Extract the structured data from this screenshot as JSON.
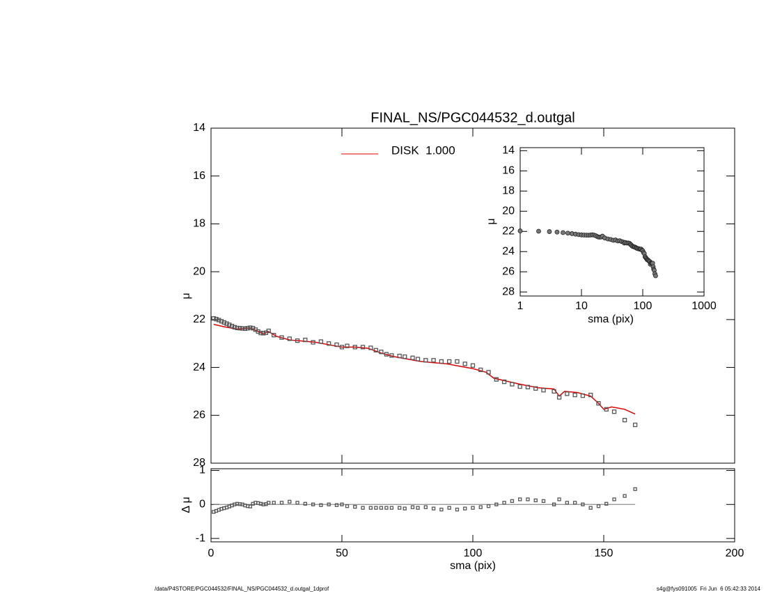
{
  "chart_data": [
    {
      "type": "scatter",
      "title": "FINAL_NS/PGC044532_d.outgal",
      "y_label": "μ",
      "xlim": [
        0,
        200
      ],
      "ylim": [
        14,
        28
      ],
      "y_inverted": true,
      "yticks": [
        14,
        16,
        18,
        20,
        22,
        24,
        26,
        28
      ],
      "observed": {
        "color": "#555555",
        "x": [
          1,
          2,
          3,
          4,
          5,
          6,
          7,
          8,
          9,
          10,
          11,
          12,
          13,
          14,
          15,
          16,
          17,
          18,
          19,
          20,
          21,
          22,
          24,
          27,
          30,
          33,
          36,
          39,
          42,
          45,
          48,
          50,
          52,
          55,
          58,
          61,
          63,
          65,
          67,
          69,
          72,
          74,
          77,
          79,
          82,
          85,
          88,
          91,
          94,
          97,
          100,
          103,
          106,
          109,
          112,
          115,
          118,
          121,
          124,
          127,
          131,
          133,
          136,
          139,
          142,
          145,
          148,
          151,
          154,
          158,
          162
        ],
        "values": [
          21.95,
          21.98,
          22.02,
          22.07,
          22.12,
          22.17,
          22.22,
          22.27,
          22.32,
          22.35,
          22.36,
          22.37,
          22.38,
          22.36,
          22.34,
          22.36,
          22.42,
          22.5,
          22.56,
          22.57,
          22.55,
          22.47,
          22.65,
          22.75,
          22.8,
          22.88,
          22.85,
          22.95,
          22.92,
          23.0,
          23.05,
          23.15,
          23.1,
          23.15,
          23.15,
          23.18,
          23.28,
          23.35,
          23.45,
          23.5,
          23.52,
          23.55,
          23.6,
          23.65,
          23.7,
          23.7,
          23.75,
          23.75,
          23.75,
          23.85,
          23.92,
          24.1,
          24.2,
          24.5,
          24.6,
          24.7,
          24.8,
          24.82,
          24.88,
          24.95,
          25.0,
          25.25,
          25.1,
          25.15,
          25.18,
          25.15,
          25.5,
          25.75,
          25.85,
          26.2,
          26.4
        ]
      },
      "model": {
        "name": "DISK  1.000",
        "color": "#e00000",
        "x": [
          1,
          5,
          10,
          15,
          18,
          20,
          22,
          25,
          30,
          35,
          40,
          45,
          50,
          55,
          60,
          65,
          70,
          75,
          80,
          85,
          90,
          95,
          100,
          105,
          108,
          112,
          118,
          125,
          131,
          133,
          135,
          140,
          145,
          148,
          150,
          153,
          158,
          162
        ],
        "values": [
          22.2,
          22.3,
          22.4,
          22.35,
          22.5,
          22.6,
          22.5,
          22.7,
          22.85,
          22.9,
          22.95,
          23.05,
          23.15,
          23.15,
          23.2,
          23.4,
          23.55,
          23.65,
          23.75,
          23.8,
          23.85,
          23.95,
          24.05,
          24.2,
          24.45,
          24.55,
          24.7,
          24.85,
          24.9,
          25.2,
          25.0,
          25.05,
          25.2,
          25.5,
          25.75,
          25.65,
          25.75,
          25.95
        ]
      }
    },
    {
      "type": "scatter",
      "x_label": "sma (pix)",
      "y_label": "Δ μ",
      "xlim": [
        0,
        200
      ],
      "xticks": [
        0,
        50,
        100,
        150,
        200
      ],
      "ylim": [
        -1.1,
        1.05
      ],
      "yticks": [
        -1,
        0,
        1
      ],
      "color": "#555555",
      "values": [
        -0.22,
        -0.19,
        -0.16,
        -0.13,
        -0.11,
        -0.09,
        -0.06,
        -0.03,
        0.0,
        0.02,
        0.01,
        0.0,
        -0.03,
        -0.05,
        -0.06,
        0.02,
        0.05,
        0.04,
        0.02,
        0.0,
        0.01,
        0.05,
        0.05,
        0.05,
        0.08,
        0.05,
        0.02,
        0.0,
        -0.02,
        0.0,
        -0.02,
        0.0,
        -0.05,
        -0.07,
        -0.1,
        -0.1,
        -0.1,
        -0.1,
        -0.1,
        -0.1,
        -0.1,
        -0.12,
        -0.08,
        -0.1,
        -0.08,
        -0.12,
        -0.15,
        -0.1,
        -0.15,
        -0.12,
        -0.1,
        -0.08,
        -0.05,
        0.0,
        0.05,
        0.1,
        0.15,
        0.15,
        0.12,
        0.1,
        0.0,
        0.15,
        0.05,
        0.05,
        0.0,
        -0.1,
        -0.05,
        0.02,
        0.15,
        0.25,
        0.45
      ]
    },
    {
      "type": "scatter",
      "x_label": "sma (pix)",
      "y_label": "μ",
      "log_x": true,
      "xlim": [
        1,
        1000
      ],
      "xticks": [
        1,
        10,
        100,
        1000
      ],
      "ylim": [
        13.7,
        28.4
      ],
      "y_inverted": true,
      "yticks": [
        14,
        16,
        18,
        20,
        22,
        24,
        26,
        28
      ],
      "color": "#777777"
    }
  ],
  "footer": {
    "left": "/data/P4STORE/PGC044532/FINAL_NS/PGC044532_d.outgal_1dprof",
    "right": "s4g@fys091005  Fri Jun  6 05:42:33 2014"
  }
}
